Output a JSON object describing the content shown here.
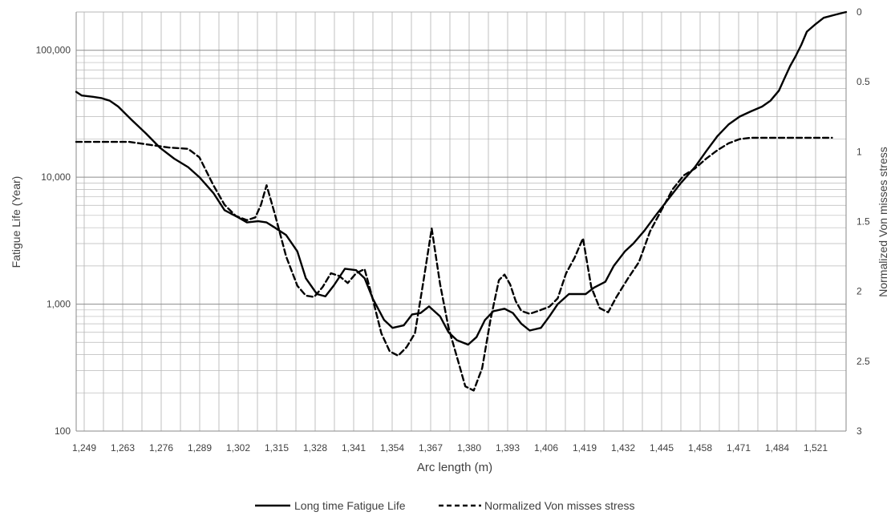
{
  "chart_data": {
    "type": "line",
    "title": "",
    "xlabel": "Arc length (m)",
    "ylabel": "Fatigue Life (Year)",
    "y2label": "Normalized Von misses stress",
    "x_tick_labels": [
      "1,249",
      "1,263",
      "1,276",
      "1,289",
      "1,302",
      "1,315",
      "1,328",
      "1,341",
      "1,354",
      "1,367",
      "1,380",
      "1,393",
      "1,406",
      "1,419",
      "1,432",
      "1,445",
      "1,458",
      "1,471",
      "1,484",
      "1,521"
    ],
    "y_tick_labels": [
      "100",
      "1,000",
      "10,000",
      "100,000"
    ],
    "y2_tick_labels": [
      "0",
      "0.5",
      "1",
      "1.5",
      "2",
      "2.5",
      "3"
    ],
    "xlim": [
      1249,
      1524
    ],
    "ylim": [
      100,
      200000
    ],
    "yscale": "log",
    "y2lim": [
      3,
      0
    ],
    "grid": true,
    "legend_position": "bottom",
    "series": [
      {
        "name": "Long time Fatigue Life",
        "axis": "left",
        "style": "solid",
        "color": "#000000",
        "x": [
          1249,
          1251,
          1255,
          1258,
          1261,
          1264,
          1269,
          1274,
          1279,
          1284,
          1289,
          1293,
          1298,
          1302,
          1307,
          1310,
          1314,
          1317,
          1320,
          1324,
          1328,
          1331,
          1335,
          1338,
          1341,
          1345,
          1349,
          1352,
          1355,
          1359,
          1362,
          1366,
          1369,
          1372,
          1375,
          1379,
          1382,
          1385,
          1389,
          1392,
          1395,
          1398,
          1402,
          1405,
          1408,
          1411,
          1415,
          1418,
          1421,
          1425,
          1428,
          1431,
          1434,
          1438,
          1441,
          1445,
          1448,
          1452,
          1456,
          1460,
          1465,
          1470,
          1474,
          1478,
          1482,
          1486,
          1490,
          1494,
          1497,
          1500,
          1502,
          1504,
          1506,
          1508,
          1510,
          1513,
          1516,
          1520,
          1524
        ],
        "y": [
          47000,
          44000,
          43000,
          42000,
          40000,
          36000,
          28000,
          22000,
          17000,
          14000,
          12000,
          10000,
          7500,
          5500,
          4800,
          4400,
          4500,
          4400,
          4000,
          3500,
          2600,
          1600,
          1200,
          1150,
          1400,
          1900,
          1850,
          1600,
          1100,
          750,
          650,
          680,
          830,
          850,
          960,
          800,
          600,
          520,
          480,
          550,
          750,
          880,
          920,
          850,
          700,
          620,
          650,
          800,
          1000,
          1200,
          1200,
          1200,
          1350,
          1500,
          2000,
          2600,
          3000,
          3800,
          5000,
          6500,
          9000,
          12000,
          16000,
          21000,
          26000,
          30000,
          33000,
          36000,
          40000,
          48000,
          60000,
          75000,
          90000,
          110000,
          140000,
          160000,
          180000,
          190000,
          200000
        ]
      },
      {
        "name": "Normalized Von misses stress",
        "axis": "right",
        "style": "dashed",
        "color": "#000000",
        "x": [
          1249,
          1260,
          1268,
          1275,
          1282,
          1289,
          1293,
          1298,
          1302,
          1306,
          1310,
          1313,
          1315,
          1317,
          1320,
          1324,
          1328,
          1331,
          1334,
          1337,
          1340,
          1343,
          1346,
          1349,
          1352,
          1355,
          1358,
          1361,
          1364,
          1367,
          1370,
          1373,
          1376,
          1379,
          1382,
          1385,
          1388,
          1391,
          1394,
          1397,
          1400,
          1402,
          1404,
          1406,
          1408,
          1411,
          1414,
          1418,
          1421,
          1424,
          1427,
          1430,
          1433,
          1436,
          1439,
          1442,
          1446,
          1450,
          1454,
          1458,
          1462,
          1466,
          1470,
          1474,
          1478,
          1482,
          1486,
          1490,
          1494,
          1498,
          1502,
          1506,
          1510,
          1515,
          1519
        ],
        "y": [
          0.93,
          0.93,
          0.93,
          0.95,
          0.97,
          0.98,
          1.04,
          1.24,
          1.38,
          1.46,
          1.49,
          1.47,
          1.38,
          1.24,
          1.45,
          1.75,
          1.96,
          2.03,
          2.04,
          1.97,
          1.87,
          1.89,
          1.94,
          1.87,
          1.84,
          2.06,
          2.3,
          2.43,
          2.46,
          2.4,
          2.3,
          1.93,
          1.55,
          1.95,
          2.26,
          2.47,
          2.68,
          2.71,
          2.55,
          2.2,
          1.92,
          1.88,
          1.95,
          2.07,
          2.14,
          2.16,
          2.14,
          2.11,
          2.05,
          1.87,
          1.76,
          1.62,
          1.97,
          2.12,
          2.15,
          2.04,
          1.91,
          1.79,
          1.57,
          1.42,
          1.27,
          1.17,
          1.12,
          1.05,
          0.99,
          0.94,
          0.91,
          0.9,
          0.9,
          0.9,
          0.9,
          0.9,
          0.9,
          0.9,
          0.9
        ]
      }
    ]
  }
}
